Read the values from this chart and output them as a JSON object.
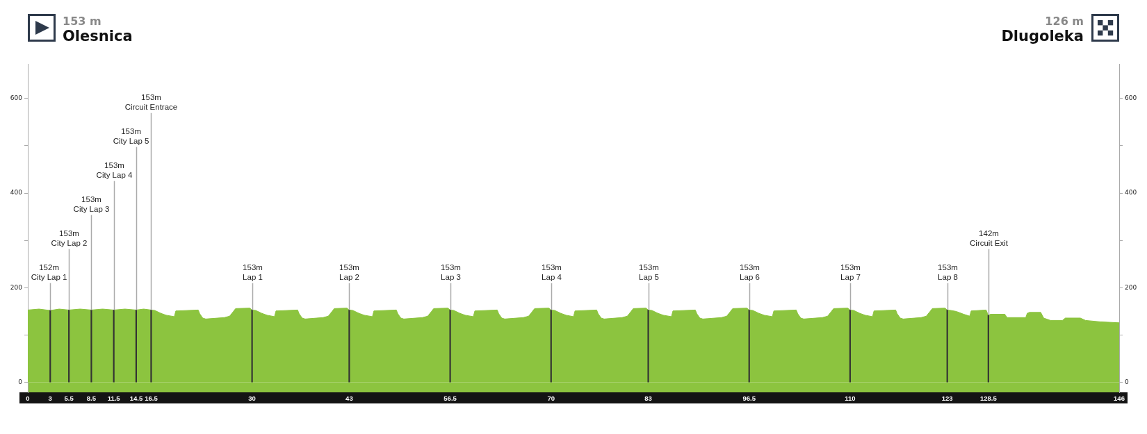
{
  "chart_data": {
    "type": "area",
    "series": [
      {
        "color": "#8cc43f",
        "x": [
          0,
          1.5,
          3,
          4.2,
          5.5,
          7,
          8.5,
          10,
          11.5,
          13,
          14.5,
          15.5,
          16.5,
          17,
          17.8,
          18.5,
          19.6,
          19.8,
          22.8,
          23,
          23.4,
          23.8,
          26.3,
          27,
          27.5,
          27.8,
          29.7,
          30,
          30.5,
          31.3,
          32,
          33,
          33.2,
          36.1,
          36.3,
          36.7,
          37.1,
          39.5,
          40.2,
          40.7,
          41,
          42.7,
          43,
          43.5,
          44.3,
          45,
          46.1,
          46.3,
          49.3,
          49.5,
          49.9,
          50.3,
          52.8,
          53.5,
          54,
          54.3,
          56.2,
          56.5,
          57,
          57.8,
          58.5,
          59.6,
          59.8,
          62.8,
          63,
          63.4,
          63.8,
          66.3,
          67,
          67.5,
          67.8,
          69.7,
          70,
          70.5,
          71.3,
          72,
          73,
          73.2,
          76.1,
          76.3,
          76.7,
          77.1,
          79.5,
          80.2,
          80.7,
          81,
          82.7,
          83,
          83.5,
          84.3,
          85,
          86.1,
          86.3,
          89.3,
          89.5,
          89.9,
          90.3,
          92.8,
          93.5,
          94,
          94.3,
          96.2,
          96.5,
          97,
          97.8,
          98.5,
          99.6,
          99.8,
          102.8,
          103,
          103.4,
          103.8,
          106.3,
          107,
          107.5,
          107.8,
          109.7,
          110,
          110.5,
          111.3,
          112,
          113,
          113.2,
          116.1,
          116.3,
          116.7,
          117.1,
          119.5,
          120.2,
          120.7,
          121,
          122.7,
          123,
          123.5,
          124.2,
          125.2,
          126,
          126.2,
          128.2,
          128.4,
          128.5,
          128.8,
          130.7,
          131,
          133.5,
          133.7,
          134,
          135.5,
          135.9,
          136.8,
          138.4,
          138.8,
          140.8,
          141.5,
          143.5,
          146
        ],
        "values": [
          153,
          155,
          152,
          155,
          153,
          155,
          153,
          155,
          153,
          155,
          153,
          155,
          153,
          152,
          146,
          142,
          139,
          151,
          153,
          145,
          136,
          134,
          137,
          140,
          150,
          156,
          157,
          153,
          152,
          146,
          142,
          139,
          151,
          153,
          145,
          136,
          134,
          137,
          140,
          150,
          156,
          157,
          153,
          152,
          146,
          142,
          139,
          151,
          153,
          145,
          136,
          134,
          137,
          140,
          150,
          156,
          157,
          153,
          152,
          146,
          142,
          139,
          151,
          153,
          145,
          136,
          134,
          137,
          140,
          150,
          156,
          157,
          153,
          152,
          146,
          142,
          139,
          151,
          153,
          145,
          136,
          134,
          137,
          140,
          150,
          156,
          157,
          153,
          152,
          146,
          142,
          139,
          151,
          153,
          145,
          136,
          134,
          137,
          140,
          150,
          156,
          157,
          153,
          152,
          146,
          142,
          139,
          151,
          153,
          145,
          136,
          134,
          137,
          140,
          150,
          156,
          157,
          153,
          152,
          146,
          142,
          139,
          151,
          153,
          145,
          136,
          134,
          137,
          140,
          150,
          156,
          157,
          153,
          152,
          150,
          144,
          140,
          151,
          153,
          145,
          142,
          144,
          144,
          137,
          137,
          146,
          148,
          148,
          136,
          131,
          131,
          136,
          136,
          131,
          128,
          126
        ]
      },
      {
        "type": "bar",
        "color": "#333333",
        "x": [
          3,
          5.5,
          8.5,
          11.5,
          14.5,
          16.5,
          30,
          43,
          56.5,
          70,
          83,
          96.5,
          110,
          123,
          128.5
        ],
        "values": [
          152,
          153,
          153,
          153,
          153,
          153,
          153,
          153,
          153,
          153,
          153,
          153,
          153,
          153,
          142
        ]
      }
    ],
    "xlim": [
      0,
      146
    ],
    "xticks": [
      0,
      3,
      5.5,
      8.5,
      11.5,
      14.5,
      16.5,
      30,
      43,
      56.5,
      70,
      83,
      96.5,
      110,
      123,
      128.5,
      146
    ],
    "ylim": [
      -21,
      673
    ],
    "yticks": [
      0,
      {
        "value": 100,
        "label": null
      },
      200,
      {
        "value": 300,
        "label": null
      },
      400,
      {
        "value": 500,
        "label": null
      },
      600
    ],
    "y2lim": [
      -21,
      673
    ],
    "y2ticks": [
      0,
      {
        "value": 100,
        "label": null
      },
      200,
      {
        "value": 300,
        "label": null
      },
      400,
      {
        "value": 500,
        "label": null
      },
      600
    ],
    "annotations": [
      "153 m\nOlesnica",
      "126 m\nDlugoleka",
      {
        "text": "152m\nCity Lap 1",
        "x": 3,
        "y": 152
      },
      {
        "text": "153m\nCity Lap 2",
        "x": 5.5,
        "y": 153
      },
      {
        "text": "153m\nCity Lap 3",
        "x": 8.5,
        "y": 153
      },
      {
        "text": "153m\nCity Lap 4",
        "x": 11.5,
        "y": 153
      },
      {
        "text": "153m\nCity Lap 5",
        "x": 14.5,
        "y": 153
      },
      {
        "text": "153m\nCircuit Entrace",
        "x": 16.5,
        "y": 153
      },
      {
        "text": "153m\nLap 1",
        "x": 30,
        "y": 153
      },
      {
        "text": "153m\nLap 2",
        "x": 43,
        "y": 153
      },
      {
        "text": "153m\nLap 3",
        "x": 56.5,
        "y": 153
      },
      {
        "text": "153m\nLap 4",
        "x": 70,
        "y": 153
      },
      {
        "text": "153m\nLap 5",
        "x": 83,
        "y": 153
      },
      {
        "text": "153m\nLap 6",
        "x": 96.5,
        "y": 153
      },
      {
        "text": "153m\nLap 7",
        "x": 110,
        "y": 153
      },
      {
        "text": "153m\nLap 8",
        "x": 123,
        "y": 153
      },
      {
        "text": "142m\nCircuit Exit",
        "x": 128.5,
        "y": 142
      }
    ]
  }
}
